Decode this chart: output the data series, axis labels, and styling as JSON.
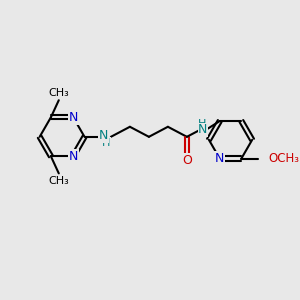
{
  "bg_color": "#e8e8e8",
  "bond_color": "#000000",
  "nitrogen_color": "#0000cc",
  "oxygen_color": "#cc0000",
  "teal_color": "#008080",
  "line_width": 1.5,
  "font_size": 9,
  "fig_size": [
    3.0,
    3.0
  ],
  "dpi": 100,
  "xlim": [
    0,
    10
  ],
  "ylim": [
    0,
    10
  ]
}
